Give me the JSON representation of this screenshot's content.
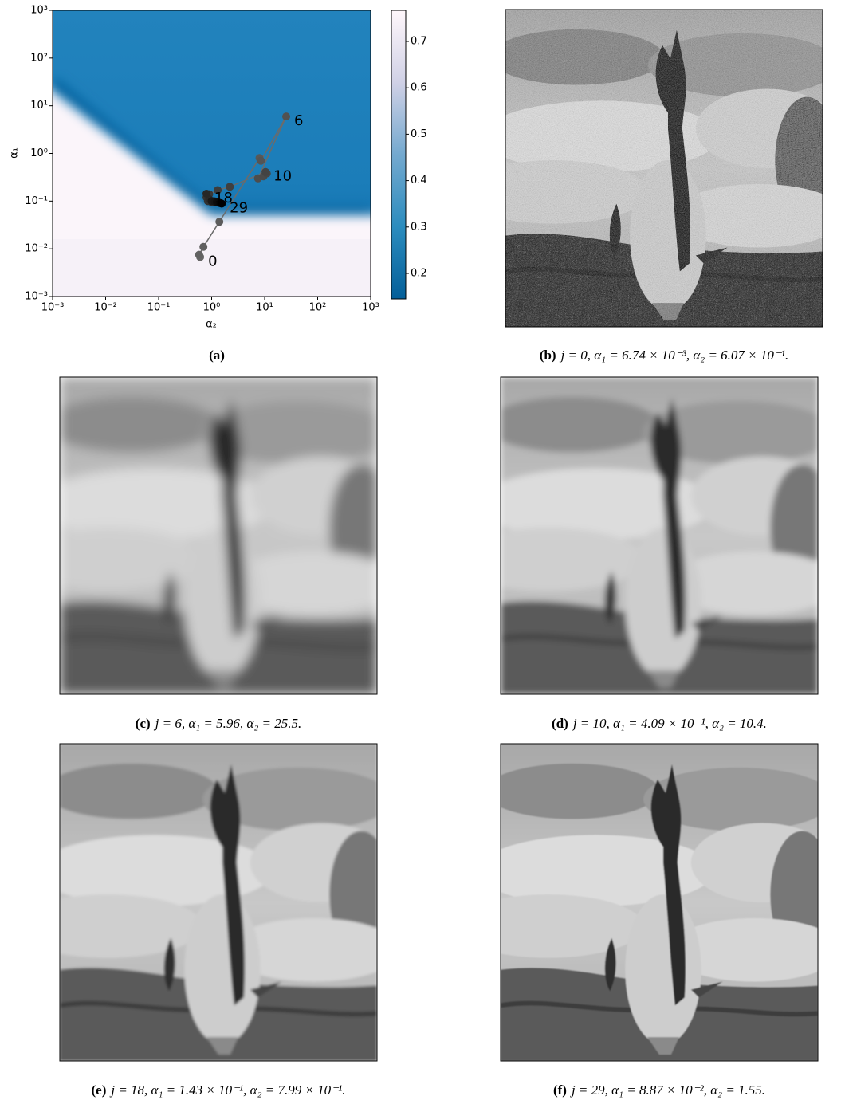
{
  "chart_data": {
    "type": "line",
    "xlabel": "α₂",
    "ylabel": "α₁",
    "x": [
      0.607,
      0.58,
      0.7,
      1.4,
      8.0,
      8.5,
      25.5,
      7.5,
      9.5,
      11,
      10.4,
      2.2,
      1.3,
      0.9,
      0.8,
      0.85,
      1.0,
      0.9,
      0.799,
      1.1,
      1.2,
      1.3,
      1.0,
      1.15,
      1.4,
      1.25,
      1.35,
      1.45,
      1.5,
      1.55
    ],
    "values": [
      0.00674,
      0.0075,
      0.011,
      0.037,
      0.8,
      0.7,
      5.96,
      0.3,
      0.33,
      0.38,
      0.409,
      0.2,
      0.17,
      0.14,
      0.12,
      0.1,
      0.095,
      0.11,
      0.143,
      0.1,
      0.098,
      0.095,
      0.1,
      0.097,
      0.092,
      0.096,
      0.093,
      0.091,
      0.09,
      0.0887
    ],
    "labeled_points": [
      0,
      6,
      10,
      18,
      29
    ],
    "xlim": [
      0.001,
      1000
    ],
    "ylim": [
      0.001,
      1000
    ],
    "xticks": [
      {
        "value": 0.001,
        "label": "10⁻³"
      },
      {
        "value": 0.01,
        "label": "10⁻²"
      },
      {
        "value": 0.1,
        "label": "10⁻¹"
      },
      {
        "value": 1,
        "label": "10⁰"
      },
      {
        "value": 10,
        "label": "10¹"
      },
      {
        "value": 100,
        "label": "10²"
      },
      {
        "value": 1000,
        "label": "10³"
      }
    ],
    "yticks": [
      {
        "value": 0.001,
        "label": "10⁻³"
      },
      {
        "value": 0.01,
        "label": "10⁻²"
      },
      {
        "value": 0.1,
        "label": "10⁻¹"
      },
      {
        "value": 1,
        "label": "10⁰"
      },
      {
        "value": 10,
        "label": "10¹"
      },
      {
        "value": 100,
        "label": "10²"
      },
      {
        "value": 1000,
        "label": "10³"
      }
    ],
    "log_x": true,
    "log_y": true,
    "line_color": "#6b6b6b",
    "marker_color_start": "#666666",
    "marker_color_end": "#000000",
    "colorbar": {
      "lim": [
        0.145,
        0.767
      ],
      "ticks": [
        0.2,
        0.3,
        0.4,
        0.5,
        0.6,
        0.7
      ]
    }
  },
  "panel_a_caption": "(a)",
  "panels": [
    {
      "label": "(b)",
      "caption": "j = 0,   α₁ = 6.74 × 10⁻³,   α₂ = 6.07 × 10⁻¹."
    },
    {
      "label": "(c)",
      "caption": "j = 6,   α₁ = 5.96,   α₂ = 25.5."
    },
    {
      "label": "(d)",
      "caption": "j = 10,   α₁ = 4.09 × 10⁻¹,   α₂ = 10.4."
    },
    {
      "label": "(e)",
      "caption": "j = 18,   α₁ = 1.43 × 10⁻¹,   α₂ = 7.99 × 10⁻¹."
    },
    {
      "label": "(f)",
      "caption": "j = 29, α₁ = 8.87 × 10⁻², α₂ = 1.55."
    }
  ]
}
